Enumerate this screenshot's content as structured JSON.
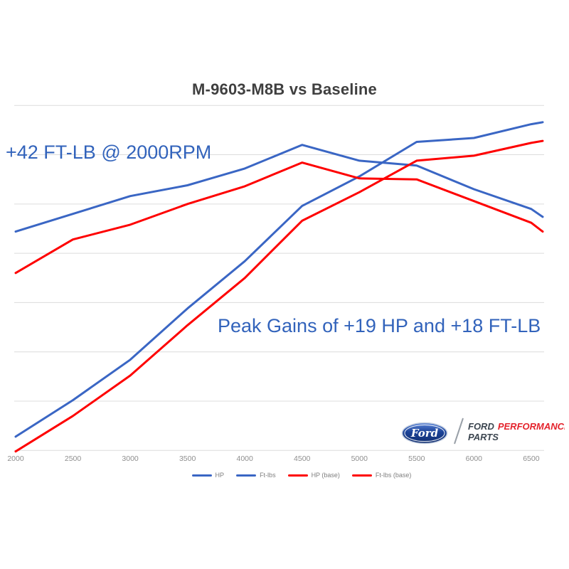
{
  "title": "M-9603-M8B vs Baseline",
  "annotations": {
    "low_end_gain": "+42 FT-LB @ 2000RPM",
    "peak_gains": "Peak Gains of +19 HP and +18 FT-LB"
  },
  "logo": {
    "oval_script": "Ford",
    "brand_word_dark": "FORD",
    "brand_word_red": "PERFORMANCE",
    "brand_line2": "PARTS",
    "oval_blue": "#1b4297",
    "brand_dark": "#3c4650",
    "brand_red": "#e4232c"
  },
  "colors": {
    "line_blue": "#3a66c4",
    "line_red": "#fe0000",
    "annotation_blue": "#3263bb",
    "title_gray": "#3f3f3f",
    "axis_text_gray": "#8f8f8f",
    "gridline_gray": "#dcdcdc"
  },
  "chart_data": {
    "type": "line",
    "title": "M-9603-M8B vs Baseline",
    "x_unit": "RPM",
    "x": [
      2000,
      2500,
      3000,
      3500,
      4000,
      4500,
      5000,
      5500,
      6000,
      6500,
      6600
    ],
    "x_tick_labels": [
      "2000",
      "2500",
      "3000",
      "3500",
      "4000",
      "4500",
      "5000",
      "5500",
      "6000",
      "6500"
    ],
    "y_axis": {
      "labels_visible": false,
      "gridline_min": 100,
      "gridline_max": 450,
      "gridline_step": 50
    },
    "grid": "horizontal",
    "legend_position": "bottom",
    "series": [
      {
        "name": "HP",
        "color": "#3a66c4",
        "values": [
          114,
          151,
          192,
          244,
          292,
          348,
          378,
          413,
          417,
          431,
          433
        ]
      },
      {
        "name": "Ft-lbs",
        "color": "#3a66c4",
        "values": [
          322,
          340,
          358,
          369,
          386,
          410,
          394,
          389,
          365,
          345,
          337
        ]
      },
      {
        "name": "HP (base)",
        "color": "#fe0000",
        "values": [
          99,
          135,
          176,
          227,
          275,
          333,
          362,
          394,
          399,
          412,
          414
        ]
      },
      {
        "name": "Ft-lbs (base)",
        "color": "#fe0000",
        "values": [
          280,
          314,
          329,
          350,
          368,
          392,
          376,
          375,
          353,
          331,
          322
        ]
      }
    ]
  }
}
